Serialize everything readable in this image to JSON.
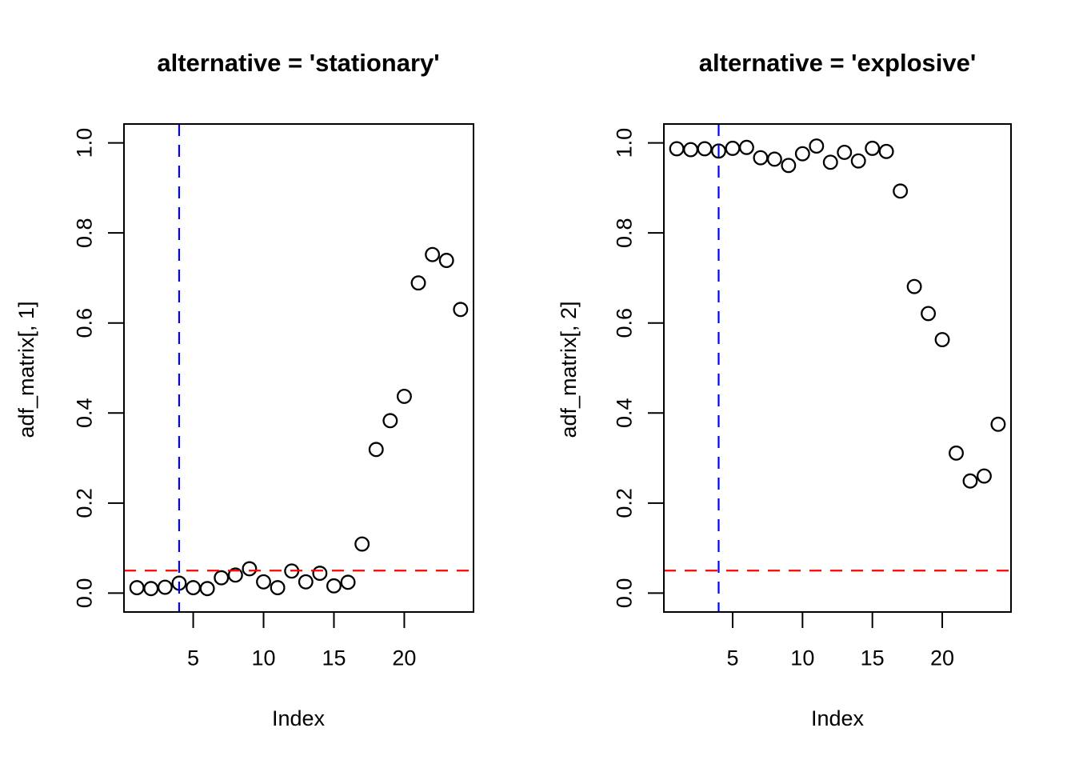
{
  "figure": {
    "background": "#ffffff",
    "panel_count": 2
  },
  "chart_data": [
    {
      "type": "scatter",
      "title": "alternative = 'stationary'",
      "xlabel": "Index",
      "ylabel": "adf_matrix[, 1]",
      "marker": "open-circle",
      "marker_color": "#000000",
      "grid": false,
      "xlim": [
        0.08,
        24.92
      ],
      "ylim": [
        -0.042,
        1.042
      ],
      "xticks": [
        5,
        10,
        15,
        20
      ],
      "yticks": [
        "0.0",
        "0.2",
        "0.4",
        "0.6",
        "0.8",
        "1.0"
      ],
      "ytick_values": [
        0.0,
        0.2,
        0.4,
        0.6,
        0.8,
        1.0
      ],
      "x": [
        1,
        2,
        3,
        4,
        5,
        6,
        7,
        8,
        9,
        10,
        11,
        12,
        13,
        14,
        15,
        16,
        17,
        18,
        19,
        20,
        21,
        22,
        23,
        24
      ],
      "y": [
        0.012,
        0.01,
        0.013,
        0.022,
        0.012,
        0.01,
        0.034,
        0.04,
        0.054,
        0.025,
        0.012,
        0.049,
        0.025,
        0.044,
        0.016,
        0.024,
        0.109,
        0.319,
        0.383,
        0.437,
        0.689,
        0.752,
        0.739,
        0.63
      ],
      "vline": {
        "x": 4,
        "color": "#0000ff",
        "style": "dashed"
      },
      "hline": {
        "y": 0.05,
        "color": "#ff0000",
        "style": "dashed"
      }
    },
    {
      "type": "scatter",
      "title": "alternative = 'explosive'",
      "xlabel": "Index",
      "ylabel": "adf_matrix[, 2]",
      "marker": "open-circle",
      "marker_color": "#000000",
      "grid": false,
      "xlim": [
        0.08,
        24.92
      ],
      "ylim": [
        -0.042,
        1.042
      ],
      "xticks": [
        5,
        10,
        15,
        20
      ],
      "yticks": [
        "0.0",
        "0.2",
        "0.4",
        "0.6",
        "0.8",
        "1.0"
      ],
      "ytick_values": [
        0.0,
        0.2,
        0.4,
        0.6,
        0.8,
        1.0
      ],
      "x": [
        1,
        2,
        3,
        4,
        5,
        6,
        7,
        8,
        9,
        10,
        11,
        12,
        13,
        14,
        15,
        16,
        17,
        18,
        19,
        20,
        21,
        22,
        23,
        24
      ],
      "y": [
        0.987,
        0.985,
        0.987,
        0.982,
        0.988,
        0.99,
        0.967,
        0.964,
        0.95,
        0.976,
        0.993,
        0.957,
        0.979,
        0.96,
        0.988,
        0.981,
        0.893,
        0.681,
        0.621,
        0.563,
        0.311,
        0.249,
        0.26,
        0.375
      ],
      "vline": {
        "x": 4,
        "color": "#0000ff",
        "style": "dashed"
      },
      "hline": {
        "y": 0.05,
        "color": "#ff0000",
        "style": "dashed"
      }
    }
  ]
}
